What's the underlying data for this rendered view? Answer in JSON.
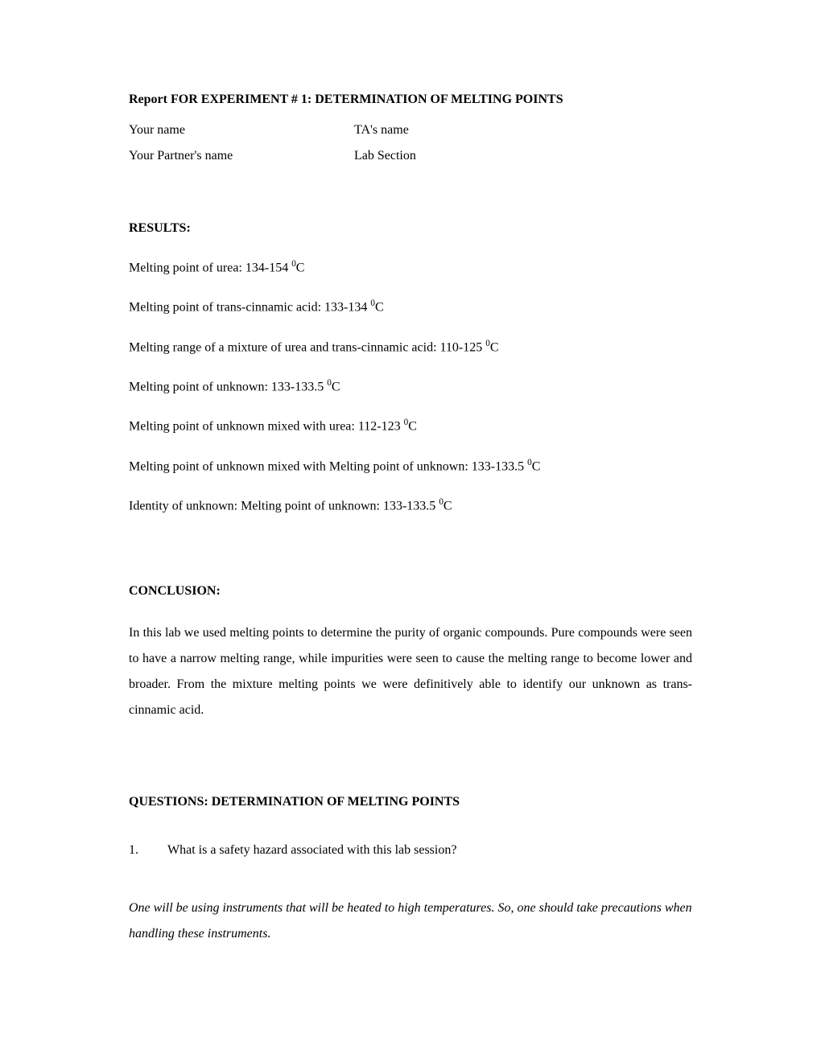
{
  "title": "Report FOR EXPERIMENT # 1: DETERMINATION OF MELTING POINTS",
  "header": {
    "row1_left": "Your name",
    "row1_right": "TA's name",
    "row2_left": "Your Partner's name",
    "row2_right": "Lab Section"
  },
  "results": {
    "heading": "RESULTS:",
    "lines": [
      {
        "prefix": "Melting point of urea:  134-154 ",
        "sup": "0",
        "suffix": "C"
      },
      {
        "prefix": "Melting point of trans-cinnamic acid: 133-134 ",
        "sup": "0",
        "suffix": "C"
      },
      {
        "prefix": "Melting range of a mixture of urea and trans-cinnamic acid: 110-125 ",
        "sup": "0",
        "suffix": "C"
      },
      {
        "prefix": "Melting point of unknown: 133-133.5 ",
        "sup": "0",
        "suffix": "C"
      },
      {
        "prefix": "Melting point of unknown mixed with urea: 112-123 ",
        "sup": "0",
        "suffix": "C"
      },
      {
        "prefix": "Melting point of unknown mixed with Melting point of unknown: 133-133.5 ",
        "sup": "0",
        "suffix": "C"
      },
      {
        "prefix": "Identity of unknown: Melting point of unknown: 133-133.5 ",
        "sup": "0",
        "suffix": "C"
      }
    ]
  },
  "conclusion": {
    "heading": "CONCLUSION:",
    "text": "In this lab we used melting points to determine the purity of organic compounds.  Pure compounds were seen to have a narrow melting range, while impurities were seen to cause the melting range to become lower and broader.  From the mixture melting points we were definitively able to identify our unknown as trans-cinnamic acid."
  },
  "questions": {
    "heading": "QUESTIONS: DETERMINATION OF MELTING POINTS",
    "q1_number": "1.",
    "q1_text": "What is a safety hazard associated with this lab session?",
    "a1_text": "One will be using instruments that will be heated to high temperatures.  So, one should take precautions when handling these instruments."
  }
}
